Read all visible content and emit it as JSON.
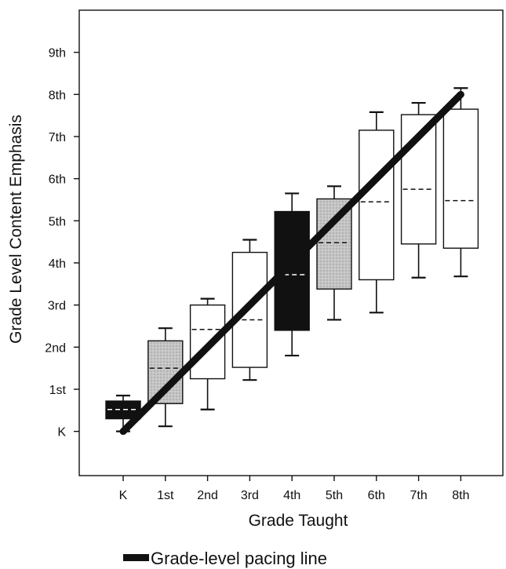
{
  "chart_data": {
    "type": "box",
    "xlabel": "Grade Taught",
    "ylabel": "Grade Level Content Emphasis",
    "categories": [
      "K",
      "1st",
      "2nd",
      "3rd",
      "4th",
      "5th",
      "6th",
      "7th",
      "8th"
    ],
    "y_ticks": [
      {
        "value": 0,
        "label": "K"
      },
      {
        "value": 1,
        "label": "1st"
      },
      {
        "value": 2,
        "label": "2nd"
      },
      {
        "value": 3,
        "label": "3rd"
      },
      {
        "value": 4,
        "label": "4th"
      },
      {
        "value": 5,
        "label": "5th"
      },
      {
        "value": 6,
        "label": "6th"
      },
      {
        "value": 7,
        "label": "7th"
      },
      {
        "value": 8,
        "label": "8th"
      },
      {
        "value": 9,
        "label": "9th"
      }
    ],
    "ylim": [
      -1.05,
      10
    ],
    "boxes": [
      {
        "category": "K",
        "whisker_low": 0.0,
        "q1": 0.3,
        "median": 0.52,
        "q3": 0.72,
        "whisker_high": 0.85,
        "fill": "#111111"
      },
      {
        "category": "1st",
        "whisker_low": 0.12,
        "q1": 0.66,
        "median": 1.5,
        "q3": 2.15,
        "whisker_high": 2.45,
        "fill": "#bdbdbd"
      },
      {
        "category": "2nd",
        "whisker_low": 0.52,
        "q1": 1.25,
        "median": 2.42,
        "q3": 3.0,
        "whisker_high": 3.15,
        "fill": "#ffffff"
      },
      {
        "category": "3rd",
        "whisker_low": 1.22,
        "q1": 1.52,
        "median": 2.65,
        "q3": 4.25,
        "whisker_high": 4.55,
        "fill": "#ffffff"
      },
      {
        "category": "4th",
        "whisker_low": 1.8,
        "q1": 2.4,
        "median": 3.72,
        "q3": 5.22,
        "whisker_high": 5.65,
        "fill": "#111111"
      },
      {
        "category": "5th",
        "whisker_low": 2.65,
        "q1": 3.38,
        "median": 4.48,
        "q3": 5.52,
        "whisker_high": 5.82,
        "fill": "#bdbdbd"
      },
      {
        "category": "6th",
        "whisker_low": 2.82,
        "q1": 3.6,
        "median": 5.45,
        "q3": 7.15,
        "whisker_high": 7.58,
        "fill": "#ffffff"
      },
      {
        "category": "7th",
        "whisker_low": 3.65,
        "q1": 4.45,
        "median": 5.75,
        "q3": 7.52,
        "whisker_high": 7.8,
        "fill": "#ffffff"
      },
      {
        "category": "8th",
        "whisker_low": 3.68,
        "q1": 4.35,
        "median": 5.48,
        "q3": 7.65,
        "whisker_high": 8.15,
        "fill": "#ffffff"
      }
    ],
    "pacing_line": {
      "from": {
        "category": "K",
        "value": 0
      },
      "to": {
        "category": "8th",
        "value": 8
      },
      "color": "#111111"
    },
    "legend": [
      {
        "label": "Grade-level pacing line",
        "placement": "bottom"
      }
    ],
    "grid": false
  }
}
